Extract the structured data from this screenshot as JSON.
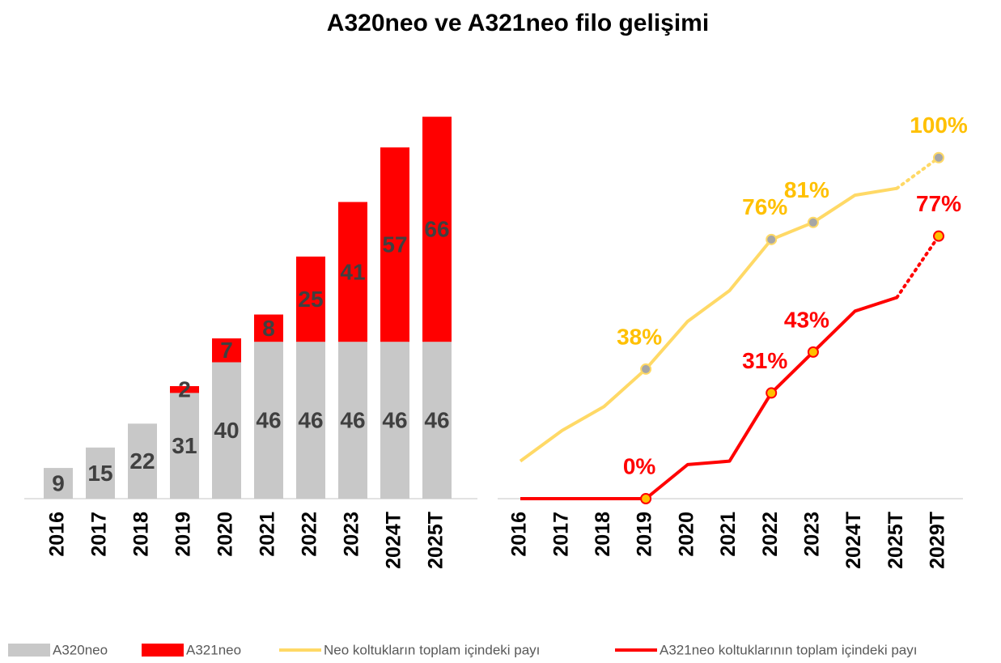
{
  "title": "A320neo ve A321neo filo gelişimi",
  "chart_data": [
    {
      "type": "bar",
      "stacked": true,
      "categories": [
        "2016",
        "2017",
        "2018",
        "2019",
        "2020",
        "2021",
        "2022",
        "2023",
        "2024T",
        "2025T"
      ],
      "series": [
        {
          "name": "A320neo",
          "color": "#c8c8c8",
          "values": [
            9,
            15,
            22,
            31,
            40,
            46,
            46,
            46,
            46,
            46
          ]
        },
        {
          "name": "A321neo",
          "color": "#ff0000",
          "values": [
            null,
            null,
            null,
            2,
            7,
            8,
            25,
            41,
            57,
            66
          ]
        }
      ],
      "ylim": [
        0,
        113
      ]
    },
    {
      "type": "line",
      "dotted_last_segment": true,
      "categories": [
        "2016",
        "2017",
        "2018",
        "2019",
        "2020",
        "2021",
        "2022",
        "2023",
        "2024T",
        "2025T",
        "2029T"
      ],
      "series": [
        {
          "name": "Neo koltukların toplam içindeki payı",
          "color": "#ffd966",
          "label_color": "#ffc000",
          "marker_color": "#a6a6a6",
          "values": [
            11,
            20,
            27,
            38,
            52,
            61,
            76,
            81,
            89,
            91,
            100
          ],
          "value_labels": [
            null,
            null,
            null,
            "38%",
            null,
            null,
            "76%",
            "81%",
            null,
            null,
            "100%"
          ]
        },
        {
          "name": "A321neo koltuklarının toplam içindeki payı",
          "color": "#ff0000",
          "label_color": "#ff0000",
          "marker_color": "#ffc000",
          "values": [
            0,
            0,
            0,
            0,
            10,
            11,
            31,
            43,
            55,
            59,
            77
          ],
          "value_labels": [
            null,
            null,
            null,
            "0%",
            null,
            null,
            "31%",
            "43%",
            null,
            null,
            "77%"
          ]
        }
      ],
      "ylim": [
        0,
        113
      ]
    }
  ]
}
